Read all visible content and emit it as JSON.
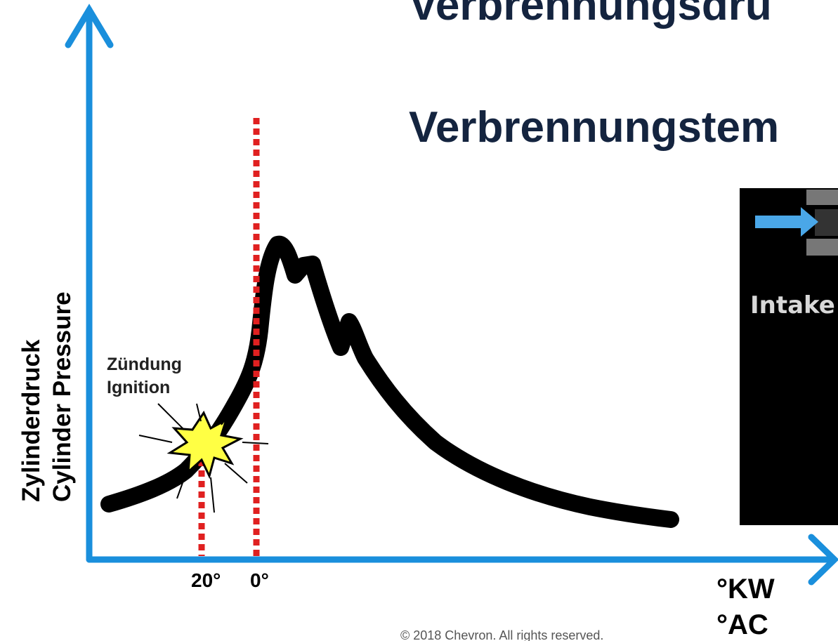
{
  "title_lines": [
    "Verbrennungsdru",
    "Verbrennungstem"
  ],
  "y_axis_labels": [
    "Zylinderdruck",
    "Cylinder Pressure"
  ],
  "ignition_labels": [
    "Zündung",
    "Ignition"
  ],
  "x_markers": [
    "20°",
    "0°"
  ],
  "x_axis_units": [
    "°KW",
    "°AC"
  ],
  "inset_label": "Intake",
  "copyright": "© 2018 Chevron. All rights reserved."
}
